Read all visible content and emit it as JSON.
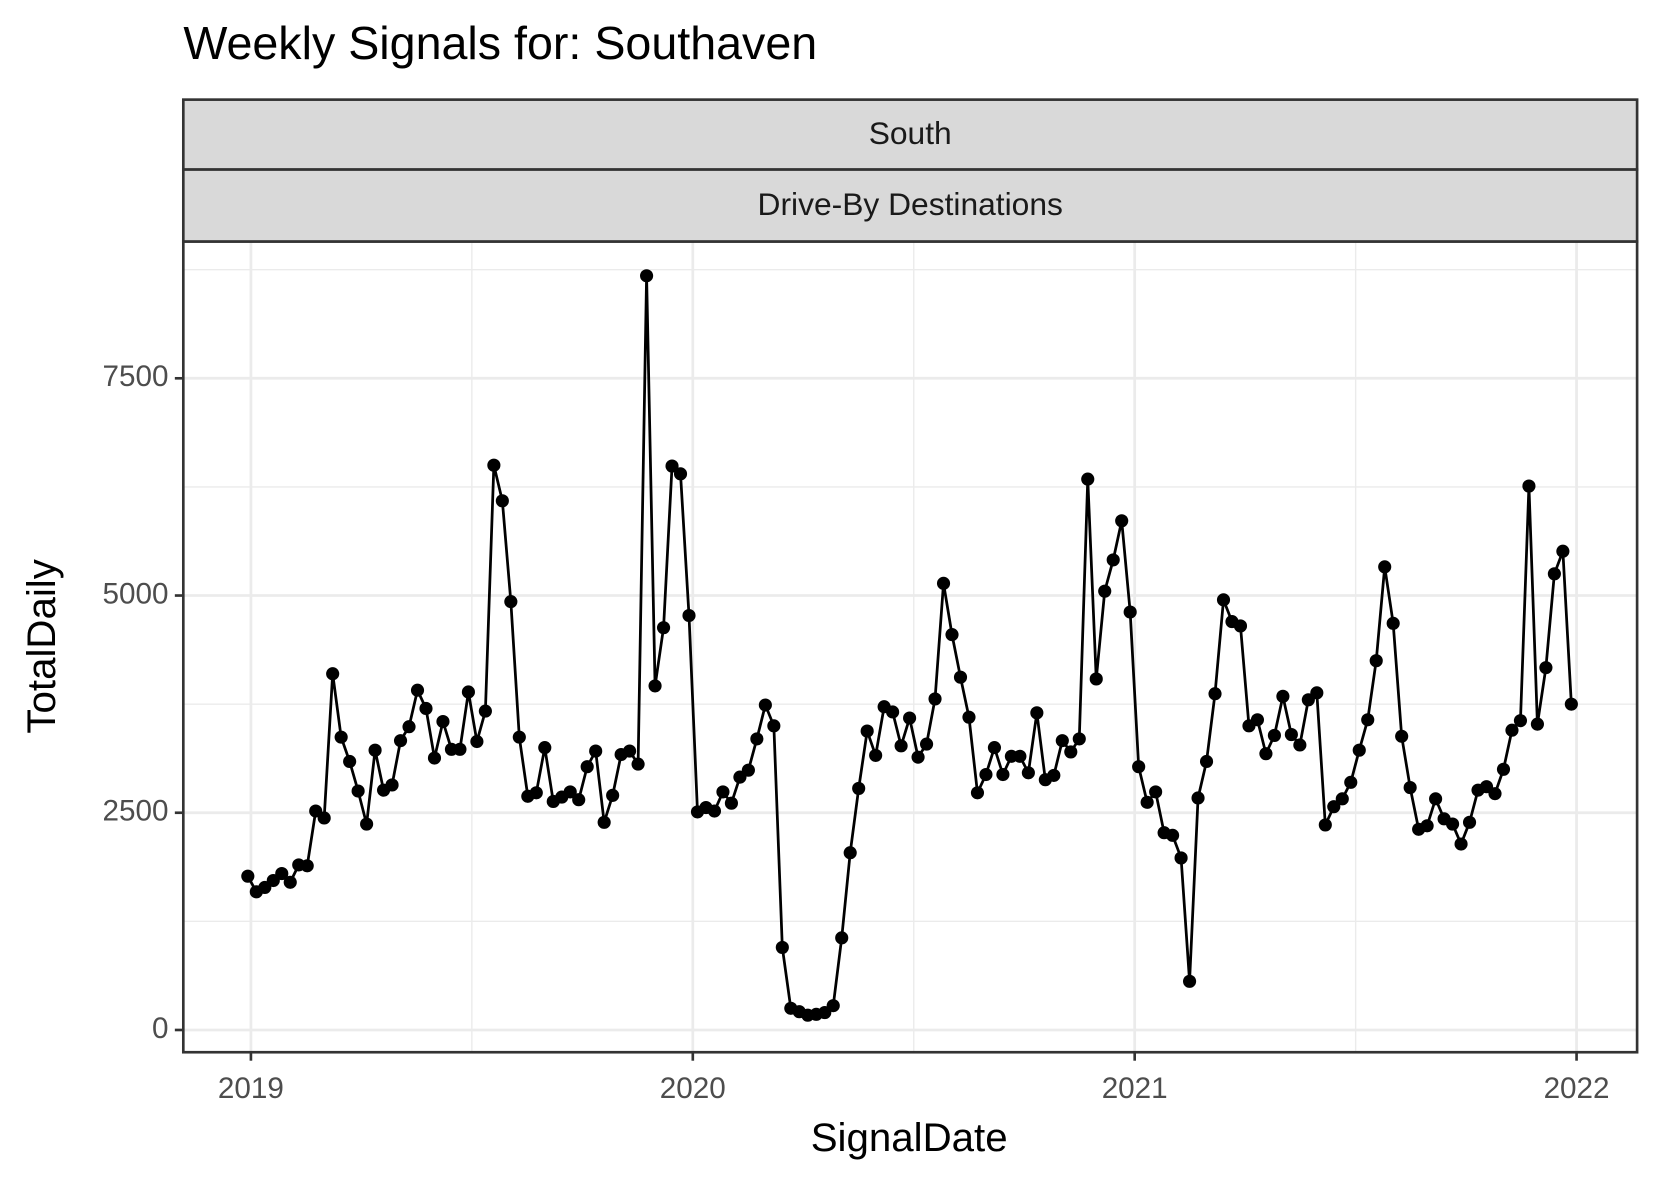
{
  "chart_data": {
    "type": "line",
    "title": "Weekly Signals for: Southaven",
    "facets": [
      "South",
      "Drive-By Destinations"
    ],
    "x_label": "SignalDate",
    "y_label": "TotalDaily",
    "x": [
      2018.993,
      2019.0122,
      2019.0314,
      2019.0506,
      2019.0698,
      2019.089,
      2019.1082,
      2019.1274,
      2019.1466,
      2019.1658,
      2019.185,
      2019.2042,
      2019.2234,
      2019.2426,
      2019.2618,
      2019.281,
      2019.3002,
      2019.3194,
      2019.3386,
      2019.3578,
      2019.377,
      2019.3962,
      2019.4154,
      2019.4346,
      2019.4538,
      2019.473,
      2019.4922,
      2019.5114,
      2019.5306,
      2019.5498,
      2019.569,
      2019.5882,
      2019.6074,
      2019.6266,
      2019.6458,
      2019.665,
      2019.6842,
      2019.7034,
      2019.7226,
      2019.7418,
      2019.761,
      2019.7802,
      2019.7994,
      2019.8186,
      2019.8378,
      2019.857,
      2019.8762,
      2019.8954,
      2019.9146,
      2019.9338,
      2019.953,
      2019.9722,
      2019.9914,
      2020.0106,
      2020.0298,
      2020.049,
      2020.0682,
      2020.0874,
      2020.1066,
      2020.1258,
      2020.145,
      2020.1642,
      2020.1834,
      2020.2026,
      2020.2218,
      2020.241,
      2020.2602,
      2020.2794,
      2020.2986,
      2020.3178,
      2020.337,
      2020.3562,
      2020.3754,
      2020.3946,
      2020.4138,
      2020.433,
      2020.4522,
      2020.4714,
      2020.4906,
      2020.5098,
      2020.529,
      2020.5482,
      2020.5674,
      2020.5866,
      2020.6058,
      2020.625,
      2020.6442,
      2020.6634,
      2020.6826,
      2020.7018,
      2020.721,
      2020.7402,
      2020.7594,
      2020.7786,
      2020.7978,
      2020.817,
      2020.8362,
      2020.8554,
      2020.8746,
      2020.8938,
      2020.913,
      2020.9322,
      2020.9514,
      2020.9706,
      2020.9898,
      2021.009,
      2021.0282,
      2021.0474,
      2021.0666,
      2021.0858,
      2021.105,
      2021.1242,
      2021.1434,
      2021.1626,
      2021.1818,
      2021.201,
      2021.2202,
      2021.2394,
      2021.2586,
      2021.2778,
      2021.297,
      2021.3162,
      2021.3354,
      2021.3546,
      2021.3738,
      2021.393,
      2021.4122,
      2021.4314,
      2021.4506,
      2021.4698,
      2021.489,
      2021.5082,
      2021.5274,
      2021.5466,
      2021.5658,
      2021.585,
      2021.6042,
      2021.6234,
      2021.6426,
      2021.6618,
      2021.681,
      2021.7002,
      2021.7194,
      2021.7386,
      2021.7578,
      2021.777,
      2021.7962,
      2021.8154,
      2021.8346,
      2021.8538,
      2021.873,
      2021.8922,
      2021.9114,
      2021.9306,
      2021.9498,
      2021.969,
      2021.9882
    ],
    "series": [
      {
        "color": "#000000",
        "values": [
          1770,
          1590,
          1640,
          1720,
          1800,
          1700,
          1900,
          1890,
          2520,
          2440,
          4100,
          3370,
          3090,
          2750,
          2370,
          3220,
          2760,
          2820,
          3330,
          3490,
          3910,
          3700,
          3130,
          3550,
          3230,
          3230,
          3890,
          3320,
          3670,
          6500,
          6090,
          4930,
          3370,
          2690,
          2730,
          3250,
          2630,
          2680,
          2740,
          2650,
          3030,
          3210,
          2390,
          2700,
          3170,
          3210,
          3060,
          8680,
          3960,
          4630,
          6490,
          6400,
          4770,
          2510,
          2560,
          2520,
          2740,
          2610,
          2910,
          2990,
          3350,
          3740,
          3500,
          950,
          250,
          210,
          170,
          180,
          200,
          280,
          1060,
          2040,
          2780,
          3440,
          3160,
          3720,
          3660,
          3270,
          3590,
          3140,
          3290,
          3810,
          5140,
          4550,
          4060,
          3600,
          2730,
          2940,
          3250,
          2940,
          3150,
          3150,
          2960,
          3650,
          2880,
          2930,
          3330,
          3200,
          3350,
          6340,
          4040,
          5050,
          5410,
          5860,
          4810,
          3030,
          2620,
          2740,
          2270,
          2240,
          1980,
          560,
          2670,
          3090,
          3870,
          4950,
          4700,
          4650,
          3500,
          3570,
          3180,
          3390,
          3840,
          3400,
          3280,
          3800,
          3880,
          2360,
          2570,
          2660,
          2850,
          3220,
          3570,
          4250,
          5330,
          4680,
          3380,
          2790,
          2310,
          2350,
          2660,
          2430,
          2370,
          2140,
          2390,
          2760,
          2800,
          2720,
          3000,
          3450,
          3560,
          6260,
          3520,
          4170,
          5250,
          5510,
          3750
        ]
      }
    ],
    "xlim": [
      2018.847,
      2022.137
    ],
    "xticks": [
      2019,
      2020,
      2021,
      2022
    ],
    "ylim": [
      -256,
      9073
    ],
    "yticks": [
      0,
      2500,
      5000,
      7500
    ],
    "grid": true,
    "minor_grid": true
  }
}
